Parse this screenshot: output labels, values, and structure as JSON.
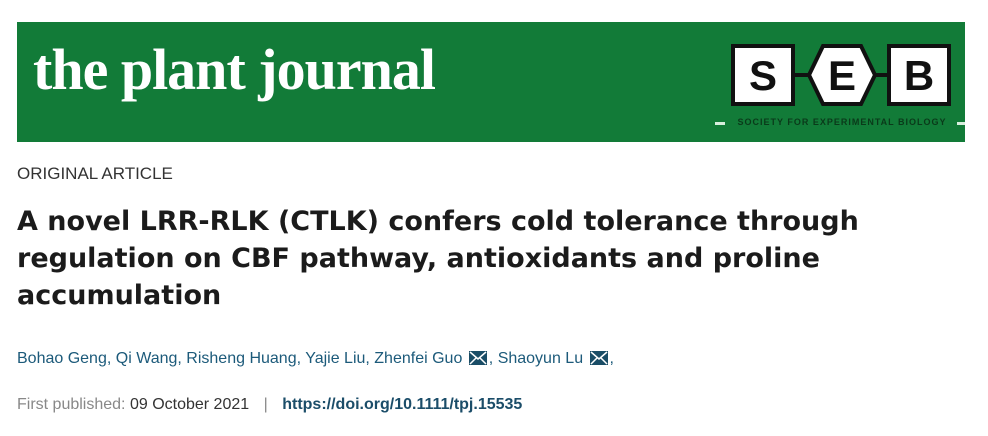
{
  "journal": {
    "title": "the plant journal",
    "logo_letters": [
      "S",
      "E",
      "B"
    ],
    "society": "SOCIETY FOR EXPERIMENTAL BIOLOGY",
    "brand_color": "#127b38"
  },
  "article": {
    "type": "ORIGINAL ARTICLE",
    "title": "A novel LRR-RLK (CTLK) confers cold tolerance through regulation on CBF pathway, antioxidants and proline accumulation",
    "authors": [
      {
        "name": "Bohao Geng",
        "sep": ", "
      },
      {
        "name": "Qi Wang",
        "sep": ", "
      },
      {
        "name": "Risheng Huang",
        "sep": ", "
      },
      {
        "name": "Yajie Liu",
        "sep": ", "
      },
      {
        "name": "Zhenfei Guo",
        "sep": ", ",
        "email_icon": "mail-icon"
      },
      {
        "name": "Shaoyun Lu",
        "sep": ",",
        "email_icon": "mail-icon"
      }
    ],
    "first_published_label": "First published:",
    "first_published_date": "09 October 2021",
    "separator": "|",
    "doi": "https://doi.org/10.1111/tpj.15535"
  }
}
